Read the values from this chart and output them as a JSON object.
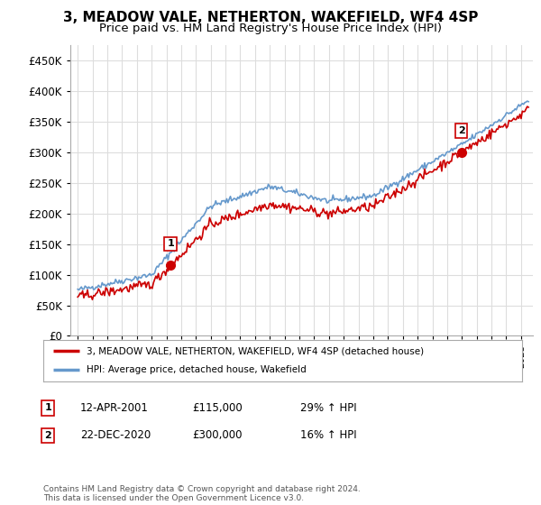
{
  "title": "3, MEADOW VALE, NETHERTON, WAKEFIELD, WF4 4SP",
  "subtitle": "Price paid vs. HM Land Registry's House Price Index (HPI)",
  "ylabel_ticks": [
    0,
    50000,
    100000,
    150000,
    200000,
    250000,
    300000,
    350000,
    400000,
    450000
  ],
  "ylabel_labels": [
    "£0",
    "£50K",
    "£100K",
    "£150K",
    "£200K",
    "£250K",
    "£300K",
    "£350K",
    "£400K",
    "£450K"
  ],
  "ylim_min": 0,
  "ylim_max": 475000,
  "xlim_start": 1994.5,
  "xlim_end": 2025.8,
  "sale1_year": 2001.28,
  "sale1_price": 115000,
  "sale1_label": "1",
  "sale2_year": 2020.97,
  "sale2_price": 300000,
  "sale2_label": "2",
  "red_line_color": "#cc0000",
  "blue_line_color": "#6699cc",
  "background_color": "#ffffff",
  "grid_color": "#dddddd",
  "legend_label_red": "3, MEADOW VALE, NETHERTON, WAKEFIELD, WF4 4SP (detached house)",
  "legend_label_blue": "HPI: Average price, detached house, Wakefield",
  "annotation1_date": "12-APR-2001",
  "annotation1_price": "£115,000",
  "annotation1_hpi": "29% ↑ HPI",
  "annotation2_date": "22-DEC-2020",
  "annotation2_price": "£300,000",
  "annotation2_hpi": "16% ↑ HPI",
  "footer": "Contains HM Land Registry data © Crown copyright and database right 2024.\nThis data is licensed under the Open Government Licence v3.0.",
  "title_fontsize": 11,
  "subtitle_fontsize": 9.5
}
